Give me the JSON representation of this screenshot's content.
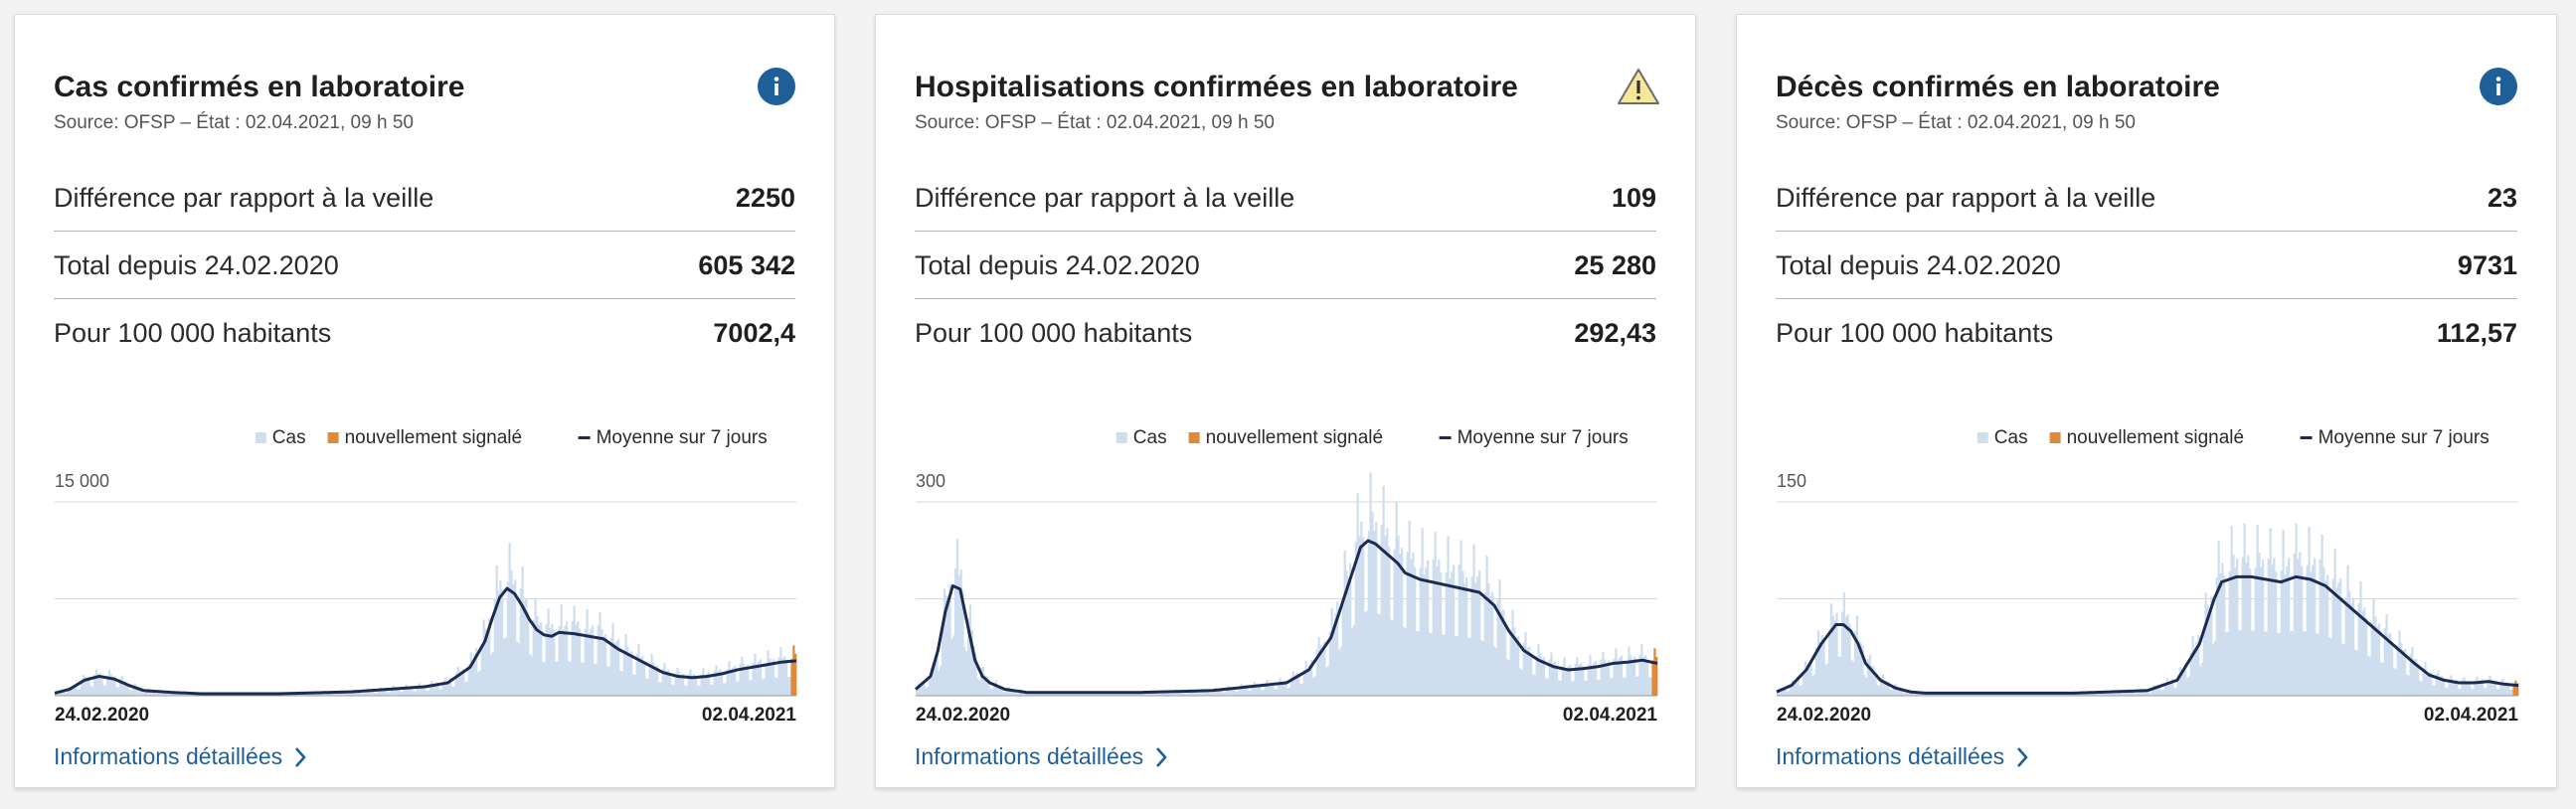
{
  "cards": [
    {
      "title": "Cas confirmés en laboratoire",
      "source": "Source: OFSP – État : 02.04.2021, 09 h 50",
      "status_icon": "info-icon",
      "kpis": [
        {
          "label": "Différence par rapport à la veille",
          "value": "2250"
        },
        {
          "label": "Total depuis 24.02.2020",
          "value": "605 342"
        },
        {
          "label": "Pour 100 000 habitants",
          "value": "7002,4"
        }
      ],
      "details_label": "Informations détaillées",
      "chart_data": {
        "type": "bar",
        "y_tick_label": "15 000",
        "ylim": [
          0,
          15000
        ],
        "x_start_label": "24.02.2020",
        "x_end_label": "02.04.2021",
        "legend": [
          "Cas",
          "nouvellement signalé",
          "Moyenne sur 7 jours"
        ],
        "legend_position": "top-right",
        "colors": {
          "bars": "#cfdeef",
          "new": "#e0893a",
          "avg": "#1c2b50",
          "grid": "#d6d6d6"
        },
        "series": [
          {
            "name": "Moyenne sur 7 jours",
            "x_fraction": [
              0.0,
              0.02,
              0.04,
              0.06,
              0.08,
              0.1,
              0.12,
              0.16,
              0.2,
              0.3,
              0.4,
              0.5,
              0.53,
              0.56,
              0.58,
              0.59,
              0.6,
              0.61,
              0.62,
              0.63,
              0.64,
              0.65,
              0.66,
              0.67,
              0.68,
              0.7,
              0.72,
              0.74,
              0.76,
              0.78,
              0.8,
              0.82,
              0.84,
              0.86,
              0.88,
              0.9,
              0.92,
              0.94,
              0.96,
              0.98,
              1.0
            ],
            "values": [
              200,
              500,
              1200,
              1500,
              1300,
              800,
              400,
              250,
              150,
              150,
              300,
              700,
              1000,
              2200,
              4200,
              6000,
              7600,
              8300,
              7900,
              7000,
              5900,
              5100,
              4700,
              4600,
              4900,
              4800,
              4600,
              4400,
              3600,
              3000,
              2400,
              1800,
              1500,
              1400,
              1500,
              1700,
              2000,
              2200,
              2400,
              2600,
              2700
            ]
          },
          {
            "name": "Cas",
            "note": "bars follow the 7-day average with daily variation"
          }
        ]
      }
    },
    {
      "title": "Hospitalisations confirmées en laboratoire",
      "source": "Source: OFSP – État : 02.04.2021, 09 h 50",
      "status_icon": "warning-icon",
      "kpis": [
        {
          "label": "Différence par rapport à la veille",
          "value": "109"
        },
        {
          "label": "Total depuis 24.02.2020",
          "value": "25 280"
        },
        {
          "label": "Pour 100 000 habitants",
          "value": "292,43"
        }
      ],
      "details_label": "Informations détaillées",
      "chart_data": {
        "type": "bar",
        "y_tick_label": "300",
        "ylim": [
          0,
          300
        ],
        "x_start_label": "24.02.2020",
        "x_end_label": "02.04.2021",
        "legend": [
          "Cas",
          "nouvellement signalé",
          "Moyenne sur 7 jours"
        ],
        "legend_position": "top-right",
        "colors": {
          "bars": "#cfdeef",
          "new": "#e0893a",
          "avg": "#1c2b50",
          "grid": "#d6d6d6"
        },
        "series": [
          {
            "name": "Moyenne sur 7 jours",
            "x_fraction": [
              0.0,
              0.02,
              0.03,
              0.04,
              0.05,
              0.06,
              0.07,
              0.08,
              0.09,
              0.1,
              0.12,
              0.15,
              0.2,
              0.3,
              0.4,
              0.5,
              0.53,
              0.56,
              0.58,
              0.6,
              0.61,
              0.62,
              0.63,
              0.64,
              0.65,
              0.66,
              0.68,
              0.7,
              0.72,
              0.74,
              0.76,
              0.78,
              0.8,
              0.82,
              0.84,
              0.86,
              0.88,
              0.9,
              0.92,
              0.94,
              0.96,
              0.98,
              1.0
            ],
            "values": [
              10,
              30,
              70,
              130,
              170,
              165,
              110,
              55,
              30,
              20,
              10,
              5,
              5,
              5,
              8,
              20,
              40,
              90,
              160,
              230,
              240,
              235,
              225,
              215,
              205,
              190,
              180,
              175,
              170,
              165,
              160,
              140,
              100,
              70,
              55,
              45,
              40,
              42,
              45,
              50,
              52,
              55,
              50
            ]
          },
          {
            "name": "Cas",
            "note": "bars follow the 7-day average with daily variation"
          }
        ]
      }
    },
    {
      "title": "Décès confirmés en laboratoire",
      "source": "Source: OFSP – État : 02.04.2021, 09 h 50",
      "status_icon": "info-icon",
      "kpis": [
        {
          "label": "Différence par rapport à la veille",
          "value": "23"
        },
        {
          "label": "Total depuis 24.02.2020",
          "value": "9731"
        },
        {
          "label": "Pour 100 000 habitants",
          "value": "112,57"
        }
      ],
      "details_label": "Informations détaillées",
      "chart_data": {
        "type": "bar",
        "y_tick_label": "150",
        "ylim": [
          0,
          150
        ],
        "x_start_label": "24.02.2020",
        "x_end_label": "02.04.2021",
        "legend": [
          "Cas",
          "nouvellement signalé",
          "Moyenne sur 7 jours"
        ],
        "legend_position": "top-right",
        "colors": {
          "bars": "#cfdeef",
          "new": "#e0893a",
          "avg": "#1c2b50",
          "grid": "#d6d6d6"
        },
        "series": [
          {
            "name": "Moyenne sur 7 jours",
            "x_fraction": [
              0.0,
              0.02,
              0.04,
              0.06,
              0.08,
              0.09,
              0.1,
              0.11,
              0.12,
              0.14,
              0.16,
              0.18,
              0.2,
              0.3,
              0.4,
              0.5,
              0.54,
              0.57,
              0.59,
              0.6,
              0.62,
              0.64,
              0.66,
              0.68,
              0.7,
              0.72,
              0.74,
              0.76,
              0.78,
              0.8,
              0.82,
              0.84,
              0.86,
              0.88,
              0.9,
              0.92,
              0.94,
              0.96,
              0.98,
              1.0
            ],
            "values": [
              3,
              8,
              20,
              40,
              55,
              55,
              50,
              40,
              25,
              12,
              6,
              3,
              2,
              2,
              2,
              4,
              12,
              40,
              75,
              88,
              92,
              92,
              90,
              88,
              92,
              90,
              85,
              75,
              65,
              55,
              45,
              35,
              25,
              16,
              12,
              10,
              10,
              11,
              9,
              8
            ]
          },
          {
            "name": "Cas",
            "note": "bars follow the 7-day average with daily variation"
          }
        ]
      }
    }
  ]
}
